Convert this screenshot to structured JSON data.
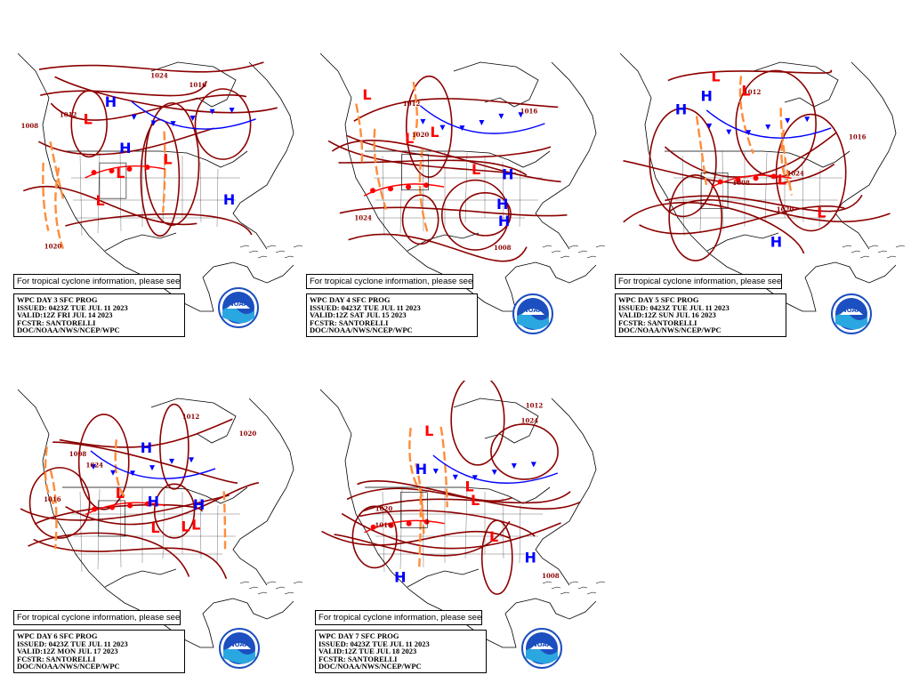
{
  "panels": [
    {
      "notice": "For tropical cyclone information, please see",
      "lines": [
        "WPC DAY 3 SFC PROG",
        "ISSUED: 0423Z TUE JUL 11 2023",
        "VALID:12Z FRI JUL 14 2023",
        "FCSTR: SANTORELLI",
        "DOC/NOAA/NWS/NCEP/WPC"
      ]
    },
    {
      "notice": "For tropical cyclone information, please see",
      "lines": [
        "WPC DAY 4 SFC PROG",
        "ISSUED: 0423Z TUE JUL 11 2023",
        "VALID:12Z SAT JUL 15 2023",
        "FCSTR: SANTORELLI",
        "DOC/NOAA/NWS/NCEP/WPC"
      ]
    },
    {
      "notice": "For tropical cyclone information, please see",
      "lines": [
        "WPC DAY 5 SFC PROG",
        "ISSUED: 0423Z TUE JUL 11 2023",
        "VALID:12Z SUN JUL 16 2023",
        "FCSTR: SANTORELLI",
        "DOC/NOAA/NWS/NCEP/WPC"
      ]
    },
    {
      "notice": "For tropical cyclone information, please see",
      "lines": [
        "WPC DAY 6 SFC PROG",
        "ISSUED: 0423Z TUE JUL 11 2023",
        "VALID:12Z MON JUL 17 2023",
        "FCSTR: SANTORELLI",
        "DOC/NOAA/NWS/NCEP/WPC"
      ]
    },
    {
      "notice": "For tropical cyclone information, please see",
      "lines": [
        "WPC DAY 7 SFC PROG",
        "ISSUED: 0423Z TUE JUL 11 2023",
        "VALID:12Z TUE JUL 18 2023",
        "FCSTR: SANTORELLI",
        "DOC/NOAA/NWS/NCEP/WPC"
      ]
    }
  ],
  "symbols": {
    "high": "H",
    "low": "L"
  },
  "isobar_values": [
    "1008",
    "1012",
    "1016",
    "1020",
    "1024"
  ],
  "logo_text": "NOAA",
  "colors": {
    "isobar": "#8b0000",
    "trough": "#ff8c3a",
    "high": "#0000ff",
    "low": "#ff0000",
    "cold_front": "#0000ff",
    "warm_front": "#ff0000"
  }
}
